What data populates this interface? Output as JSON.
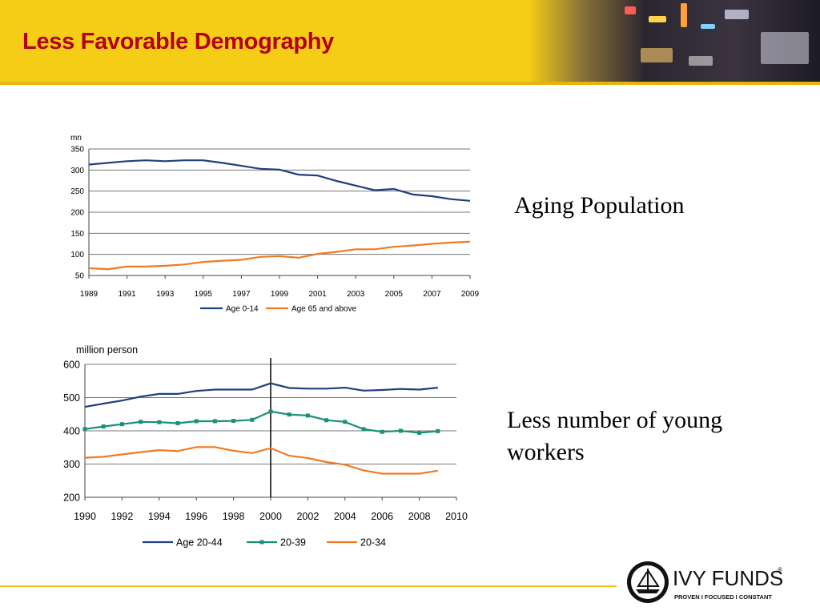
{
  "title": "Less Favorable Demography",
  "colors": {
    "header_bg": "#f6cd16",
    "title": "#b3001b",
    "navy": "#1f3f80",
    "orange": "#f07a22",
    "teal": "#1a9077"
  },
  "labels": {
    "aging": "Aging Population",
    "young_line1": "Less number of young",
    "young_line2": "workers"
  },
  "logo": {
    "brand": "IVY FUNDS",
    "registered": "®",
    "tagline": "PROVEN  I  FOCUSED  I  CONSTANT",
    "icon": "ship-emblem-icon"
  },
  "chart_data": [
    {
      "type": "line",
      "ylabel": "mn",
      "ylim": [
        50,
        350
      ],
      "yticks": [
        50,
        100,
        150,
        200,
        250,
        300,
        350
      ],
      "xlim": [
        1989,
        2009
      ],
      "xticks": [
        1989,
        1991,
        1993,
        1995,
        1997,
        1999,
        2001,
        2003,
        2005,
        2007,
        2009
      ],
      "grid": true,
      "legend": "bottom",
      "x": [
        1989,
        1990,
        1991,
        1992,
        1993,
        1994,
        1995,
        1996,
        1997,
        1998,
        1999,
        2000,
        2001,
        2002,
        2003,
        2004,
        2005,
        2006,
        2007,
        2008,
        2009
      ],
      "series": [
        {
          "name": "Age 0-14",
          "color": "#1f3f80",
          "values": [
            313,
            317,
            321,
            323,
            321,
            323,
            323,
            317,
            310,
            303,
            301,
            289,
            287,
            274,
            263,
            252,
            255,
            242,
            238,
            231,
            227
          ]
        },
        {
          "name": "Age 65 and above",
          "color": "#f07a22",
          "values": [
            67,
            65,
            71,
            71,
            73,
            76,
            82,
            85,
            87,
            94,
            96,
            92,
            101,
            106,
            112,
            112,
            118,
            121,
            125,
            128,
            130
          ]
        }
      ]
    },
    {
      "type": "line",
      "ylabel": "million person",
      "ylim": [
        200,
        600
      ],
      "yticks": [
        200,
        300,
        400,
        500,
        600
      ],
      "xlim": [
        1990,
        2010
      ],
      "xticks": [
        1990,
        1992,
        1994,
        1996,
        1998,
        2000,
        2002,
        2004,
        2006,
        2008,
        2010
      ],
      "grid": true,
      "legend": "bottom",
      "vline": 2000,
      "x": [
        1990,
        1991,
        1992,
        1993,
        1994,
        1995,
        1996,
        1997,
        1998,
        1999,
        2000,
        2001,
        2002,
        2003,
        2004,
        2005,
        2006,
        2007,
        2008,
        2009
      ],
      "series": [
        {
          "name": "Age 20-44",
          "color": "#1f3f80",
          "marker": false,
          "values": [
            472,
            482,
            491,
            503,
            511,
            511,
            520,
            524,
            524,
            524,
            543,
            529,
            527,
            527,
            530,
            521,
            523,
            526,
            524,
            530
          ]
        },
        {
          "name": "20-39",
          "color": "#1a9077",
          "marker": true,
          "values": [
            405,
            413,
            420,
            427,
            426,
            423,
            429,
            429,
            430,
            433,
            458,
            449,
            446,
            432,
            427,
            405,
            397,
            400,
            394,
            399
          ]
        },
        {
          "name": "20-34",
          "color": "#f07a22",
          "marker": false,
          "values": [
            319,
            322,
            329,
            336,
            342,
            339,
            351,
            351,
            340,
            333,
            348,
            325,
            318,
            306,
            298,
            281,
            271,
            271,
            271,
            280
          ]
        }
      ]
    }
  ]
}
